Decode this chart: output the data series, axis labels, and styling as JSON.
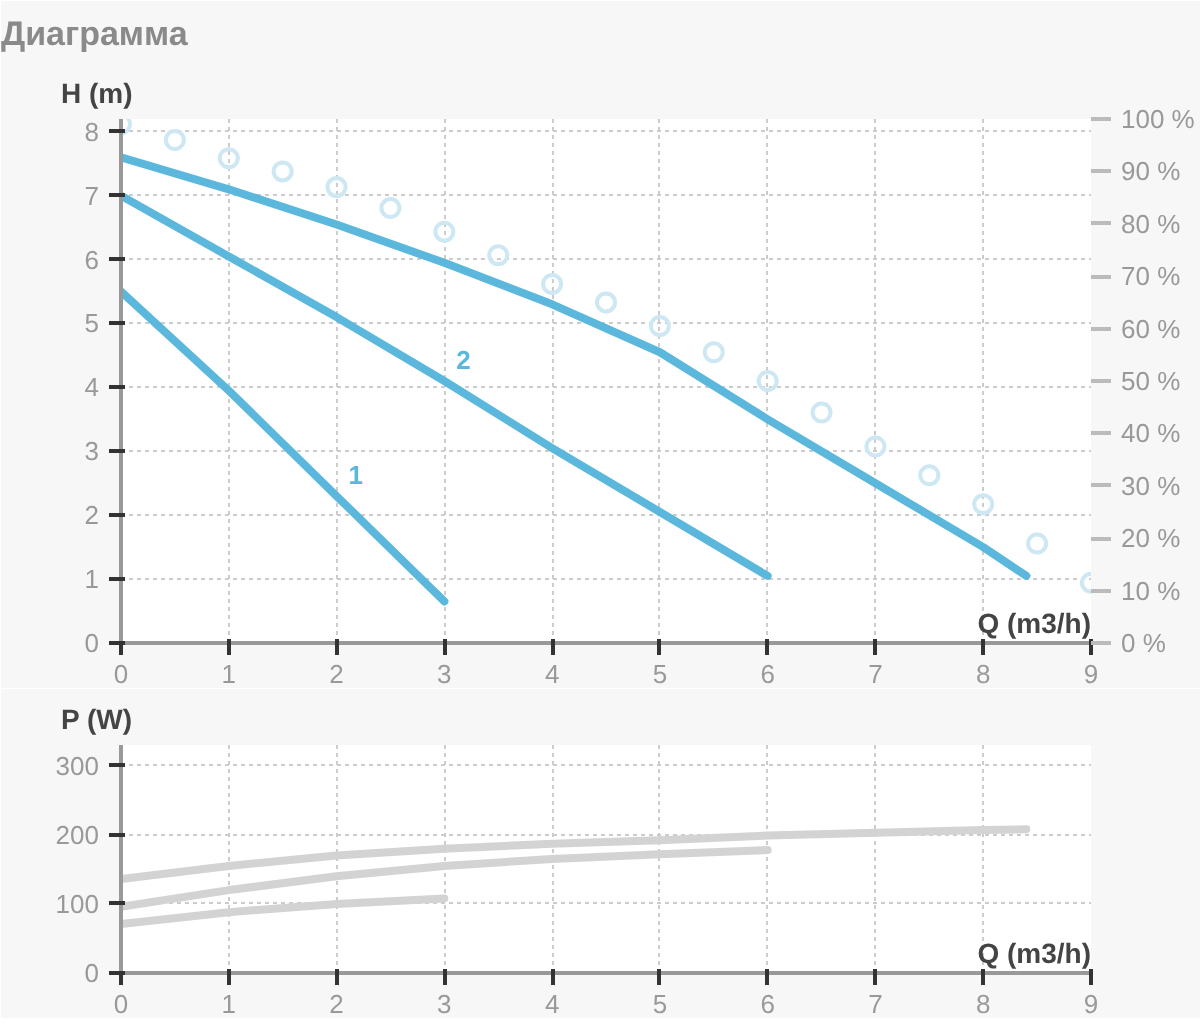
{
  "chart_data": [
    {
      "type": "line",
      "title": "Диаграмма",
      "ylabel": "H (m)",
      "xlabel": "Q (m3/h)",
      "xlim": [
        0,
        9
      ],
      "xticks": [
        0,
        1,
        2,
        3,
        4,
        5,
        6,
        7,
        8,
        9
      ],
      "ylim": [
        0,
        8.2
      ],
      "yticks": [
        0,
        1,
        2,
        3,
        4,
        5,
        6,
        7,
        8
      ],
      "y2lim": [
        0,
        100
      ],
      "y2ticks": [
        {
          "value": 0,
          "label": "0 %"
        },
        {
          "value": 10,
          "label": "10 %"
        },
        {
          "value": 20,
          "label": "20 %"
        },
        {
          "value": 30,
          "label": "30 %"
        },
        {
          "value": 40,
          "label": "40 %"
        },
        {
          "value": 50,
          "label": "50 %"
        },
        {
          "value": 60,
          "label": "60 %"
        },
        {
          "value": 70,
          "label": "70 %"
        },
        {
          "value": 80,
          "label": "80 %"
        },
        {
          "value": 90,
          "label": "90 %"
        },
        {
          "value": 100,
          "label": "100 %"
        }
      ],
      "grid": true,
      "line_style": "solid",
      "series": [
        {
          "name": "1",
          "color": "#5bb8dc",
          "x": [
            0,
            1,
            2,
            3
          ],
          "values": [
            5.5,
            3.95,
            2.3,
            0.65
          ]
        },
        {
          "name": "2",
          "color": "#5bb8dc",
          "x": [
            0,
            1,
            2,
            3,
            4,
            5,
            6
          ],
          "values": [
            7.0,
            6.05,
            5.1,
            4.1,
            3.05,
            2.05,
            1.05
          ]
        },
        {
          "color": "#5bb8dc",
          "x": [
            0,
            1,
            2,
            3,
            4,
            5,
            6,
            7,
            8,
            8.4
          ],
          "values": [
            7.6,
            7.1,
            6.55,
            5.95,
            5.3,
            4.55,
            3.5,
            2.5,
            1.5,
            1.05
          ]
        },
        {
          "type": "scatter",
          "marker": "circle",
          "axis": "y2",
          "color": "#cde7f3",
          "x": [
            0,
            0.5,
            1,
            1.5,
            2,
            2.5,
            3,
            3.5,
            4,
            4.5,
            5,
            5.5,
            6,
            6.5,
            7,
            7.5,
            8,
            8.5,
            9
          ],
          "values": [
            99,
            96,
            92.5,
            90,
            87,
            83,
            78.5,
            74,
            68.5,
            65,
            60.5,
            55.5,
            50,
            44,
            37.5,
            32,
            26.5,
            19,
            11.5
          ]
        }
      ]
    },
    {
      "type": "line",
      "ylabel": "P (W)",
      "xlabel": "Q (m3/h)",
      "xlim": [
        0,
        9
      ],
      "xticks": [
        0,
        1,
        2,
        3,
        4,
        5,
        6,
        7,
        8,
        9
      ],
      "ylim": [
        0,
        330
      ],
      "yticks": [
        0,
        100,
        200,
        300
      ],
      "grid": true,
      "line_style": "solid",
      "series": [
        {
          "color": "#d3d3d3",
          "x": [
            0,
            1,
            2,
            3,
            4,
            5,
            6,
            7,
            8,
            8.4
          ],
          "values": [
            136,
            155,
            170,
            180,
            187,
            192,
            199,
            203,
            207,
            208
          ]
        },
        {
          "color": "#d3d3d3",
          "x": [
            0,
            1,
            2,
            3,
            4,
            5,
            6
          ],
          "values": [
            96,
            120,
            140,
            155,
            165,
            172,
            178
          ]
        },
        {
          "color": "#d3d3d3",
          "x": [
            0,
            1,
            2,
            3
          ],
          "values": [
            71,
            88,
            100,
            108
          ]
        }
      ]
    }
  ]
}
